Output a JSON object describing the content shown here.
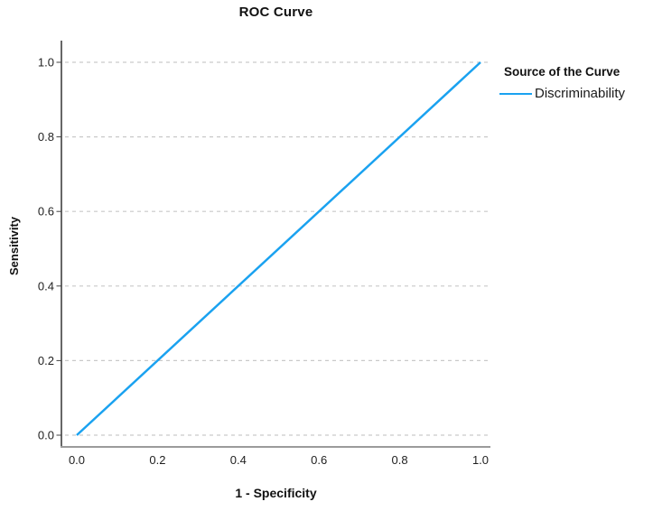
{
  "chart_data": {
    "type": "line",
    "title": "ROC Curve",
    "xlabel": "1 - Specificity",
    "ylabel": "Sensitivity",
    "xlim": [
      0.0,
      1.0
    ],
    "ylim": [
      0.0,
      1.0
    ],
    "xticks": [
      "0.0",
      "0.2",
      "0.4",
      "0.6",
      "0.8",
      "1.0"
    ],
    "yticks": [
      "0.0",
      "0.2",
      "0.4",
      "0.6",
      "0.8",
      "1.0"
    ],
    "grid": "horizontal-dashed-only",
    "legend": {
      "title": "Source of the Curve",
      "position": "right"
    },
    "series": [
      {
        "name": "Discriminability",
        "color": "#1AA2F0",
        "points": [
          {
            "x": 0.0,
            "y": 0.0
          },
          {
            "x": 1.0,
            "y": 1.0
          }
        ]
      }
    ],
    "colors": {
      "gridline": "#c9c9c9",
      "axis_left": "#404040",
      "axis_bottom": "#9b9b9b",
      "tick_text": "#1f1f1f",
      "background": "#ffffff"
    }
  }
}
